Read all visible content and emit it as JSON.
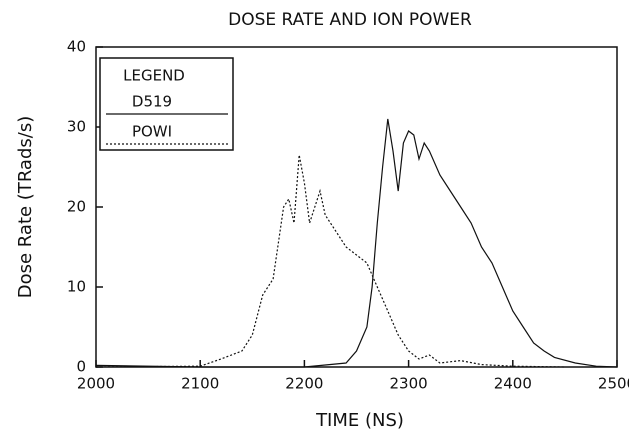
{
  "chart_data": {
    "type": "line",
    "title": "DOSE RATE AND ION POWER",
    "xlabel": "TIME (NS)",
    "ylabel": "Dose Rate (TRads/s)",
    "legend_title": "LEGEND",
    "legend": "upper left",
    "xlim": [
      2000,
      2500
    ],
    "ylim": [
      0,
      40
    ],
    "xticks": [
      2000,
      2100,
      2200,
      2300,
      2400,
      2500
    ],
    "yticks": [
      0,
      10,
      20,
      30,
      40
    ],
    "series": [
      {
        "name": "D519",
        "color": "#111111",
        "style": "solid",
        "x": [
          2000,
          2100,
          2200,
          2240,
          2250,
          2260,
          2265,
          2270,
          2275,
          2280,
          2285,
          2290,
          2295,
          2300,
          2305,
          2310,
          2315,
          2320,
          2330,
          2340,
          2350,
          2360,
          2370,
          2380,
          2390,
          2400,
          2410,
          2420,
          2430,
          2440,
          2460,
          2480,
          2500
        ],
        "values": [
          0.2,
          0,
          0,
          0.5,
          2,
          5,
          10,
          18,
          25,
          31,
          27,
          22,
          28,
          29.5,
          29,
          26,
          28,
          27,
          24,
          22,
          20,
          18,
          15,
          13,
          10,
          7,
          5,
          3,
          2,
          1.2,
          0.5,
          0.1,
          0
        ]
      },
      {
        "name": "POWI",
        "color": "#111111",
        "style": "dotted",
        "x": [
          2000,
          2100,
          2120,
          2140,
          2150,
          2160,
          2170,
          2180,
          2185,
          2190,
          2195,
          2200,
          2205,
          2210,
          2215,
          2220,
          2230,
          2240,
          2250,
          2260,
          2270,
          2280,
          2290,
          2300,
          2310,
          2320,
          2330,
          2350,
          2370,
          2400,
          2450
        ],
        "values": [
          0,
          0.1,
          1,
          2,
          4,
          9,
          11,
          20,
          21,
          18,
          26.5,
          23,
          18,
          20,
          22,
          19,
          17,
          15,
          14,
          13,
          10,
          7,
          4,
          2,
          1,
          1.5,
          0.5,
          0.8,
          0.3,
          0.1,
          0
        ]
      }
    ]
  }
}
